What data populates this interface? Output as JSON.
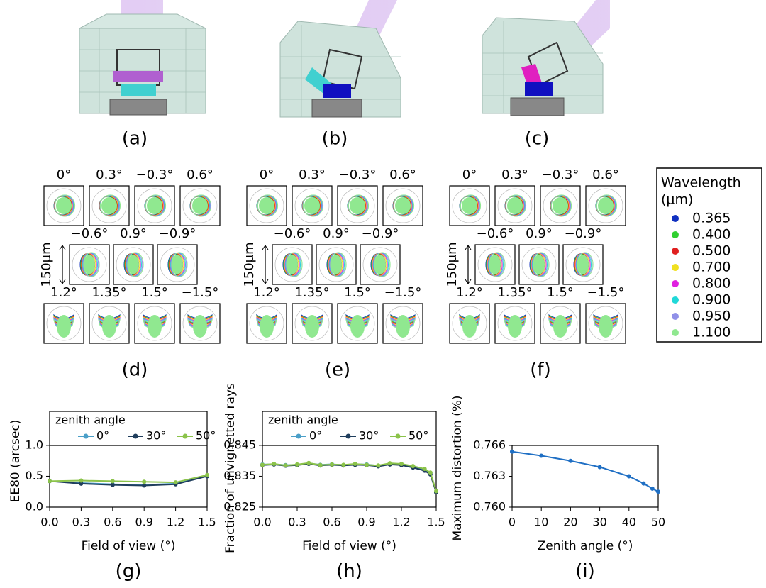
{
  "panels": [
    {
      "label": "(a)"
    },
    {
      "label": "(b)"
    },
    {
      "label": "(c)"
    }
  ],
  "spot_diagrams": [
    {
      "label": "(d)",
      "fields": [
        [
          "0°",
          "0.3°",
          "−0.3°",
          "0.6°"
        ],
        [
          "−0.6°",
          "0.9°",
          "−0.9°"
        ],
        [
          "1.2°",
          "1.35°",
          "1.5°",
          "−1.5°"
        ]
      ]
    },
    {
      "label": "(e)",
      "fields": [
        [
          "0°",
          "0.3°",
          "−0.3°",
          "0.6°"
        ],
        [
          "−0.6°",
          "0.9°",
          "−0.9°"
        ],
        [
          "1.2°",
          "1.35°",
          "1.5°",
          "−1.5°"
        ]
      ]
    },
    {
      "label": "(f)",
      "fields": [
        [
          "0°",
          "0.3°",
          "−0.3°",
          "0.6°"
        ],
        [
          "−0.6°",
          "0.9°",
          "−0.9°"
        ],
        [
          "1.2°",
          "1.35°",
          "1.5°",
          "−1.5°"
        ]
      ]
    }
  ],
  "scale_label": "150μm",
  "wavelength_legend": {
    "title": [
      "Wavelength",
      "(μm)"
    ],
    "entries": [
      {
        "name": "0.365",
        "color": "#1030c0"
      },
      {
        "name": "0.400",
        "color": "#30d030"
      },
      {
        "name": "0.500",
        "color": "#e02020"
      },
      {
        "name": "0.700",
        "color": "#f0e020"
      },
      {
        "name": "0.800",
        "color": "#e020e0"
      },
      {
        "name": "0.900",
        "color": "#20d8d8"
      },
      {
        "name": "0.950",
        "color": "#9090e8"
      },
      {
        "name": "1.100",
        "color": "#90e890"
      }
    ]
  },
  "chart_data": [
    {
      "type": "line",
      "label": "(g)",
      "x_label": "Field of view (°)",
      "y_label": "EE80 (arcsec)",
      "legend": true,
      "legend_title": "zenith angle",
      "x": [
        0,
        0.3,
        0.6,
        0.9,
        1.2,
        1.5
      ],
      "series": [
        {
          "name": "0°",
          "color": "#4a9fc8",
          "values": [
            0.42,
            0.39,
            0.37,
            0.36,
            0.38,
            0.5
          ]
        },
        {
          "name": "30°",
          "color": "#1f3d5c",
          "values": [
            0.42,
            0.38,
            0.36,
            0.35,
            0.37,
            0.5
          ]
        },
        {
          "name": "50°",
          "color": "#8bc34a",
          "values": [
            0.42,
            0.43,
            0.42,
            0.41,
            0.4,
            0.52
          ]
        }
      ],
      "xlim": [
        0,
        1.5
      ],
      "ylim": [
        0,
        1.55
      ],
      "xticks": [
        {
          "value": 0,
          "label": "0.0"
        },
        0.3,
        0.6,
        0.9,
        1.2,
        1.5
      ],
      "yticks": [
        {
          "value": 0,
          "label": "0.0"
        },
        0.5,
        {
          "value": 1,
          "label": "1.0"
        }
      ]
    },
    {
      "type": "line",
      "label": "(h)",
      "x_label": "Field of view (°)",
      "y_label": "Fraction of unvignetted rays",
      "legend": true,
      "legend_title": "zenith angle",
      "x": [
        0,
        0.1,
        0.2,
        0.3,
        0.4,
        0.5,
        0.6,
        0.7,
        0.8,
        0.9,
        1.0,
        1.1,
        1.2,
        1.3,
        1.4,
        1.45,
        1.5
      ],
      "series": [
        {
          "name": "0°",
          "color": "#4a9fc8",
          "values": [
            0.8388,
            0.8389,
            0.8386,
            0.8387,
            0.8392,
            0.8387,
            0.8389,
            0.8386,
            0.8389,
            0.8388,
            0.8384,
            0.839,
            0.8389,
            0.8381,
            0.8372,
            0.836,
            0.83
          ]
        },
        {
          "name": "30°",
          "color": "#1f3d5c",
          "values": [
            0.8386,
            0.8388,
            0.8384,
            0.8386,
            0.839,
            0.8385,
            0.8387,
            0.8385,
            0.8387,
            0.8386,
            0.8382,
            0.8388,
            0.8386,
            0.8378,
            0.8368,
            0.8356,
            0.8298
          ]
        },
        {
          "name": "50°",
          "color": "#8bc34a",
          "values": [
            0.8387,
            0.839,
            0.8385,
            0.8388,
            0.8393,
            0.8386,
            0.8388,
            0.8387,
            0.839,
            0.8387,
            0.8385,
            0.8392,
            0.839,
            0.8383,
            0.8374,
            0.8362,
            0.8302
          ]
        }
      ],
      "xlim": [
        0,
        1.5
      ],
      "ylim": [
        0.825,
        0.856
      ],
      "xticks": [
        {
          "value": 0,
          "label": "0.0"
        },
        0.3,
        0.6,
        0.9,
        1.2,
        1.5
      ],
      "yticks": [
        0.825,
        0.835,
        0.845
      ]
    },
    {
      "type": "line",
      "label": "(i)",
      "x_label": "Zenith angle (°)",
      "y_label": "Maximum distortion (%)",
      "x": [
        0,
        10,
        20,
        30,
        40,
        45,
        48,
        50
      ],
      "series": [
        {
          "color": "#1f6fc4",
          "values": [
            0.7654,
            0.765,
            0.7645,
            0.7639,
            0.763,
            0.7623,
            0.7618,
            0.7615
          ]
        }
      ],
      "xlim": [
        0,
        50
      ],
      "ylim": [
        0.76,
        0.766
      ],
      "xticks": [
        0,
        10,
        20,
        30,
        40,
        50
      ],
      "yticks": [
        {
          "value": 0.76,
          "label": "0.760"
        },
        0.763,
        0.766
      ]
    }
  ]
}
